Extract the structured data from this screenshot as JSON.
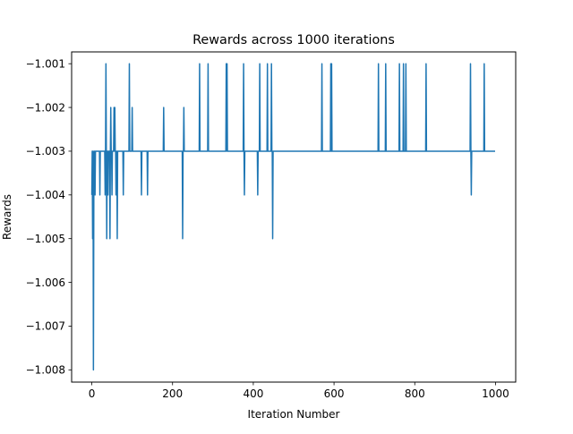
{
  "chart_data": {
    "type": "line",
    "title": "Rewards across 1000 iterations",
    "xlabel": "Iteration Number",
    "ylabel": "Rewards",
    "xlim": [
      -50,
      1050
    ],
    "ylim": [
      -1.00828,
      -1.00073
    ],
    "x_ticks": [
      0,
      200,
      400,
      600,
      800,
      1000
    ],
    "x_tick_labels": [
      "0",
      "200",
      "400",
      "600",
      "800",
      "1000"
    ],
    "y_ticks": [
      -1.001,
      -1.002,
      -1.003,
      -1.004,
      -1.005,
      -1.006,
      -1.007,
      -1.008
    ],
    "y_tick_labels": [
      "−1.001",
      "−1.002",
      "−1.003",
      "−1.004",
      "−1.005",
      "−1.006",
      "−1.007",
      "−1.008"
    ],
    "grid": false,
    "line_color": "#1f77b4",
    "series": [
      {
        "baseline": -1.003,
        "x_range": [
          0,
          999
        ],
        "deviations": [
          {
            "x": 0,
            "y": -1.004
          },
          {
            "x": 1,
            "y": -1.003
          },
          {
            "x": 2,
            "y": -1.005
          },
          {
            "x": 3,
            "y": -1.003
          },
          {
            "x": 4,
            "y": -1.008
          },
          {
            "x": 5,
            "y": -1.004
          },
          {
            "x": 6,
            "y": -1.003
          },
          {
            "x": 8,
            "y": -1.004
          },
          {
            "x": 13,
            "y": -1.003
          },
          {
            "x": 18,
            "y": -1.003
          },
          {
            "x": 20,
            "y": -1.004
          },
          {
            "x": 33,
            "y": -1.004
          },
          {
            "x": 35,
            "y": -1.001
          },
          {
            "x": 37,
            "y": -1.005
          },
          {
            "x": 40,
            "y": -1.004
          },
          {
            "x": 43,
            "y": -1.003
          },
          {
            "x": 45,
            "y": -1.005
          },
          {
            "x": 47,
            "y": -1.002
          },
          {
            "x": 50,
            "y": -1.004
          },
          {
            "x": 53,
            "y": -1.003
          },
          {
            "x": 55,
            "y": -1.002
          },
          {
            "x": 57,
            "y": -1.002
          },
          {
            "x": 60,
            "y": -1.004
          },
          {
            "x": 63,
            "y": -1.005
          },
          {
            "x": 66,
            "y": -1.003
          },
          {
            "x": 78,
            "y": -1.004
          },
          {
            "x": 93,
            "y": -1.001
          },
          {
            "x": 100,
            "y": -1.002
          },
          {
            "x": 123,
            "y": -1.004
          },
          {
            "x": 138,
            "y": -1.004
          },
          {
            "x": 178,
            "y": -1.002
          },
          {
            "x": 225,
            "y": -1.005
          },
          {
            "x": 228,
            "y": -1.002
          },
          {
            "x": 267,
            "y": -1.001
          },
          {
            "x": 288,
            "y": -1.001
          },
          {
            "x": 333,
            "y": -1.001
          },
          {
            "x": 335,
            "y": -1.001
          },
          {
            "x": 376,
            "y": -1.001
          },
          {
            "x": 378,
            "y": -1.004
          },
          {
            "x": 411,
            "y": -1.004
          },
          {
            "x": 416,
            "y": -1.001
          },
          {
            "x": 435,
            "y": -1.001
          },
          {
            "x": 445,
            "y": -1.001
          },
          {
            "x": 448,
            "y": -1.005
          },
          {
            "x": 570,
            "y": -1.001
          },
          {
            "x": 592,
            "y": -1.001
          },
          {
            "x": 594,
            "y": -1.001
          },
          {
            "x": 710,
            "y": -1.001
          },
          {
            "x": 728,
            "y": -1.001
          },
          {
            "x": 762,
            "y": -1.001
          },
          {
            "x": 772,
            "y": -1.001
          },
          {
            "x": 778,
            "y": -1.001
          },
          {
            "x": 828,
            "y": -1.001
          },
          {
            "x": 938,
            "y": -1.001
          },
          {
            "x": 940,
            "y": -1.004
          },
          {
            "x": 972,
            "y": -1.001
          }
        ]
      }
    ]
  }
}
